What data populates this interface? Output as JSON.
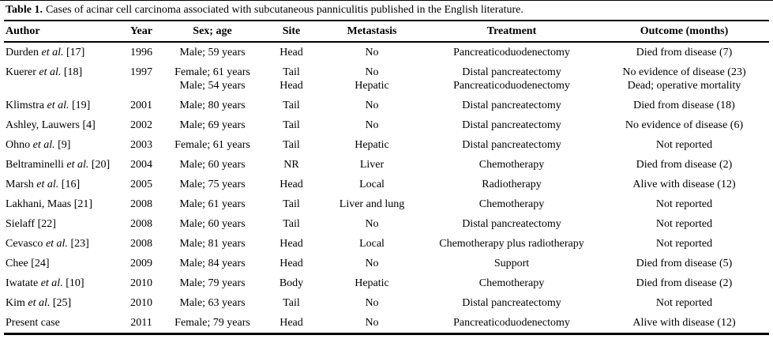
{
  "caption": {
    "label": "Table 1.",
    "text": "Cases of acinar cell carcinoma associated with subcutaneous panniculitis published in the English literature."
  },
  "table": {
    "columns": [
      "Author",
      "Year",
      "Sex; age",
      "Site",
      "Metastasis",
      "Treatment",
      "Outcome (months)"
    ],
    "rows": [
      {
        "author_pre": "Durden ",
        "author_italic": "et al.",
        "author_post": " [17]",
        "year": [
          "1996"
        ],
        "sex_age": [
          "Male; 59 years"
        ],
        "site": [
          "Head"
        ],
        "metastasis": [
          "No"
        ],
        "treatment": [
          "Pancreaticoduodenectomy"
        ],
        "outcome": [
          "Died from disease (7)"
        ]
      },
      {
        "author_pre": "Kuerer ",
        "author_italic": "et al.",
        "author_post": " [18]",
        "year": [
          "1997"
        ],
        "sex_age": [
          "Female; 61 years",
          "Male; 54 years"
        ],
        "site": [
          "Tail",
          "Head"
        ],
        "metastasis": [
          "No",
          "Hepatic"
        ],
        "treatment": [
          "Distal pancreatectomy",
          "Pancreaticoduodenectomy"
        ],
        "outcome": [
          "No evidence of disease (23)",
          "Dead; operative mortality"
        ]
      },
      {
        "author_pre": "Klimstra ",
        "author_italic": "et al.",
        "author_post": " [19]",
        "year": [
          "2001"
        ],
        "sex_age": [
          "Male; 80 years"
        ],
        "site": [
          "Tail"
        ],
        "metastasis": [
          "No"
        ],
        "treatment": [
          "Distal pancreatectomy"
        ],
        "outcome": [
          "Died from disease (18)"
        ]
      },
      {
        "author_pre": "Ashley, Lauwers",
        "author_italic": "",
        "author_post": " [4]",
        "year": [
          "2002"
        ],
        "sex_age": [
          "Male; 69 years"
        ],
        "site": [
          "Tail"
        ],
        "metastasis": [
          "No"
        ],
        "treatment": [
          "Distal pancreatectomy"
        ],
        "outcome": [
          "No evidence of disease (6)"
        ]
      },
      {
        "author_pre": "Ohno ",
        "author_italic": "et al.",
        "author_post": " [9]",
        "year": [
          "2003"
        ],
        "sex_age": [
          "Female; 61 years"
        ],
        "site": [
          "Tail"
        ],
        "metastasis": [
          "Hepatic"
        ],
        "treatment": [
          "Distal pancreatectomy"
        ],
        "outcome": [
          "Not reported"
        ]
      },
      {
        "author_pre": "Beltraminelli ",
        "author_italic": "et al.",
        "author_post": " [20]",
        "year": [
          "2004"
        ],
        "sex_age": [
          "Male; 60 years"
        ],
        "site": [
          "NR"
        ],
        "metastasis": [
          "Liver"
        ],
        "treatment": [
          "Chemotherapy"
        ],
        "outcome": [
          "Died from disease (2)"
        ]
      },
      {
        "author_pre": "Marsh ",
        "author_italic": "et al.",
        "author_post": " [16]",
        "year": [
          "2005"
        ],
        "sex_age": [
          "Male; 75 years"
        ],
        "site": [
          "Head"
        ],
        "metastasis": [
          "Local"
        ],
        "treatment": [
          "Radiotherapy"
        ],
        "outcome": [
          "Alive with disease (12)"
        ]
      },
      {
        "author_pre": "Lakhani, Maas",
        "author_italic": "",
        "author_post": " [21]",
        "year": [
          "2008"
        ],
        "sex_age": [
          "Male; 61 years"
        ],
        "site": [
          "Tail"
        ],
        "metastasis": [
          "Liver and lung"
        ],
        "treatment": [
          "Chemotherapy"
        ],
        "outcome": [
          "Not reported"
        ]
      },
      {
        "author_pre": "Sielaff",
        "author_italic": "",
        "author_post": " [22]",
        "year": [
          "2008"
        ],
        "sex_age": [
          "Male; 60 years"
        ],
        "site": [
          "Tail"
        ],
        "metastasis": [
          "No"
        ],
        "treatment": [
          "Distal pancreatectomy"
        ],
        "outcome": [
          "Not reported"
        ]
      },
      {
        "author_pre": "Cevasco ",
        "author_italic": "et al.",
        "author_post": " [23]",
        "year": [
          "2008"
        ],
        "sex_age": [
          "Male; 81 years"
        ],
        "site": [
          "Head"
        ],
        "metastasis": [
          "Local"
        ],
        "treatment": [
          "Chemotherapy plus radiotherapy"
        ],
        "outcome": [
          "Not reported"
        ]
      },
      {
        "author_pre": "Chee",
        "author_italic": "",
        "author_post": " [24]",
        "year": [
          "2009"
        ],
        "sex_age": [
          "Male; 84 years"
        ],
        "site": [
          "Head"
        ],
        "metastasis": [
          "No"
        ],
        "treatment": [
          "Support"
        ],
        "outcome": [
          "Died from disease (5)"
        ]
      },
      {
        "author_pre": "Iwatate ",
        "author_italic": "et al.",
        "author_post": " [10]",
        "year": [
          "2010"
        ],
        "sex_age": [
          "Male; 79 years"
        ],
        "site": [
          "Body"
        ],
        "metastasis": [
          "Hepatic"
        ],
        "treatment": [
          "Chemotherapy"
        ],
        "outcome": [
          "Died from disease (2)"
        ]
      },
      {
        "author_pre": "Kim ",
        "author_italic": "et al.",
        "author_post": " [25]",
        "year": [
          "2010"
        ],
        "sex_age": [
          "Male; 63 years"
        ],
        "site": [
          "Tail"
        ],
        "metastasis": [
          "No"
        ],
        "treatment": [
          "Distal pancreatectomy"
        ],
        "outcome": [
          "Not reported"
        ]
      },
      {
        "author_pre": "Present case",
        "author_italic": "",
        "author_post": "",
        "year": [
          "2011"
        ],
        "sex_age": [
          "Female; 79 years"
        ],
        "site": [
          "Head"
        ],
        "metastasis": [
          "No"
        ],
        "treatment": [
          "Pancreaticoduodenectomy"
        ],
        "outcome": [
          "Alive with disease (12)"
        ]
      }
    ]
  }
}
